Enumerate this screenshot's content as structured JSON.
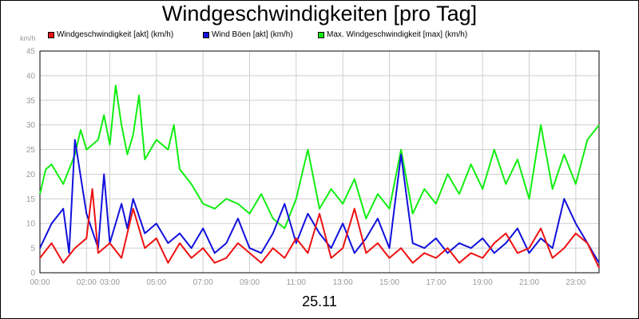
{
  "colors": {
    "wind_speed": "#ee1111",
    "gusts": "#1111dd",
    "max_speed": "#11ee11",
    "grid": "#cfcfcf",
    "tick_text": "#9a9a9a"
  },
  "chart_data": {
    "type": "line",
    "title": "Windgeschwindigkeiten [pro Tag]",
    "unit_label": "km/h",
    "xlabel": "25.11",
    "ylabel": "",
    "ylim": [
      0,
      45
    ],
    "y_ticks": [
      "0",
      "5",
      "10",
      "15",
      "20",
      "25",
      "30",
      "35",
      "40",
      "45"
    ],
    "xlim_hours": [
      0,
      24
    ],
    "x_ticks": [
      "00:00",
      "02:00",
      "03:00",
      "05:00",
      "07:00",
      "09:00",
      "11:00",
      "13:00",
      "15:00",
      "17:00",
      "19:00",
      "21:00",
      "23:00"
    ],
    "x_tick_hours": [
      0,
      2,
      3,
      5,
      7,
      9,
      11,
      13,
      15,
      17,
      19,
      21,
      23
    ],
    "grid": true,
    "legend_position": "top",
    "series": [
      {
        "name": "Windgeschwindigkeit [akt] (km/h)",
        "color_key": "wind_speed",
        "x_hours": [
          0,
          0.5,
          1,
          1.5,
          2,
          2.25,
          2.5,
          3,
          3.5,
          4,
          4.5,
          5,
          5.5,
          6,
          6.5,
          7,
          7.5,
          8,
          8.5,
          9,
          9.5,
          10,
          10.5,
          11,
          11.5,
          12,
          12.5,
          13,
          13.5,
          14,
          14.5,
          15,
          15.5,
          16,
          16.5,
          17,
          17.5,
          18,
          18.5,
          19,
          19.5,
          20,
          20.5,
          21,
          21.5,
          22,
          22.5,
          23,
          23.5,
          24
        ],
        "values": [
          3,
          6,
          2,
          5,
          7,
          17,
          4,
          6,
          3,
          13,
          5,
          7,
          2,
          6,
          3,
          5,
          2,
          3,
          6,
          4,
          2,
          5,
          3,
          7,
          4,
          12,
          3,
          5,
          13,
          4,
          6,
          3,
          5,
          2,
          4,
          3,
          5,
          2,
          4,
          3,
          6,
          8,
          4,
          5,
          9,
          3,
          5,
          8,
          6,
          1
        ]
      },
      {
        "name": "Wind Böen [akt] (km/h)",
        "color_key": "gusts",
        "x_hours": [
          0,
          0.5,
          1,
          1.25,
          1.5,
          2,
          2.5,
          2.75,
          3,
          3.5,
          3.75,
          4,
          4.5,
          5,
          5.5,
          6,
          6.5,
          7,
          7.5,
          8,
          8.5,
          9,
          9.5,
          10,
          10.5,
          11,
          11.5,
          12,
          12.5,
          13,
          13.5,
          14,
          14.5,
          15,
          15.5,
          16,
          16.5,
          17,
          17.5,
          18,
          18.5,
          19,
          19.5,
          20,
          20.5,
          21,
          21.5,
          22,
          22.5,
          23,
          23.5,
          24
        ],
        "values": [
          5,
          10,
          13,
          4,
          27,
          12,
          5,
          20,
          6,
          14,
          9,
          15,
          8,
          10,
          6,
          8,
          5,
          9,
          4,
          6,
          11,
          5,
          4,
          8,
          14,
          6,
          12,
          8,
          5,
          10,
          4,
          7,
          11,
          5,
          24,
          6,
          5,
          7,
          4,
          6,
          5,
          7,
          4,
          6,
          9,
          4,
          7,
          5,
          15,
          10,
          6,
          2
        ]
      },
      {
        "name": "Max. Windgeschwindigkeit [max] (km/h)",
        "color_key": "max_speed",
        "x_hours": [
          0,
          0.25,
          0.5,
          1,
          1.5,
          1.75,
          2,
          2.5,
          2.75,
          3,
          3.25,
          3.5,
          3.75,
          4,
          4.25,
          4.5,
          5,
          5.5,
          5.75,
          6,
          6.5,
          7,
          7.5,
          8,
          8.5,
          9,
          9.5,
          10,
          10.5,
          11,
          11.5,
          12,
          12.5,
          13,
          13.5,
          14,
          14.5,
          15,
          15.5,
          16,
          16.5,
          17,
          17.5,
          18,
          18.5,
          19,
          19.5,
          20,
          20.5,
          21,
          21.5,
          22,
          22.5,
          23,
          23.5,
          24
        ],
        "values": [
          16,
          21,
          22,
          18,
          24,
          29,
          25,
          27,
          32,
          26,
          38,
          30,
          24,
          28,
          36,
          23,
          27,
          25,
          30,
          21,
          18,
          14,
          13,
          15,
          14,
          12,
          16,
          11,
          9,
          15,
          25,
          13,
          17,
          14,
          19,
          11,
          16,
          13,
          25,
          12,
          17,
          14,
          20,
          16,
          22,
          17,
          25,
          18,
          23,
          15,
          30,
          17,
          24,
          18,
          27,
          30
        ]
      }
    ]
  }
}
